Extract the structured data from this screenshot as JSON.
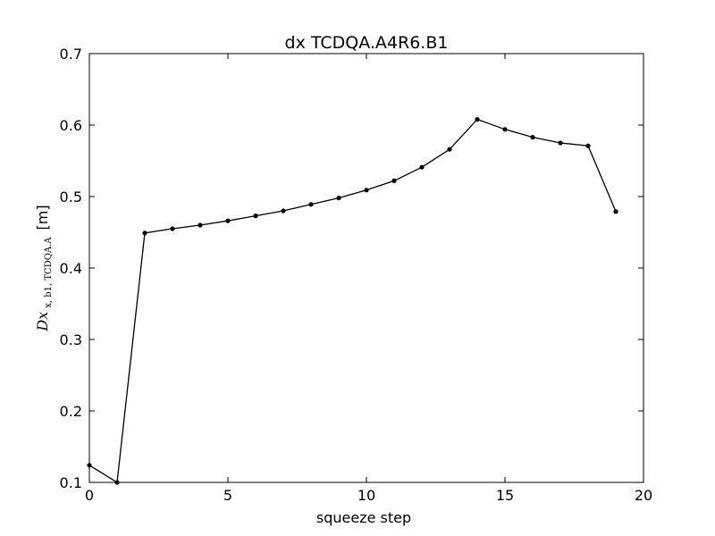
{
  "chart_data": {
    "type": "line",
    "title": "dx TCDQA.A4R6.B1",
    "xlabel": "squeeze step",
    "ylabel": {
      "main": "Dx",
      "subscript": "x, b1, TCDQA.A",
      "unit": "[m]"
    },
    "xlim": [
      0,
      20
    ],
    "ylim": [
      0.1,
      0.7
    ],
    "xticks": [
      0,
      5,
      10,
      15,
      20
    ],
    "xtick_labels": [
      "0",
      "5",
      "10",
      "15",
      "20"
    ],
    "yticks": [
      0.1,
      0.2,
      0.3,
      0.4,
      0.5,
      0.6,
      0.7
    ],
    "ytick_labels": [
      "0.1",
      "0.2",
      "0.3",
      "0.4",
      "0.5",
      "0.6",
      "0.7"
    ],
    "grid": false,
    "series": [
      {
        "name": "dx",
        "color": "#000000",
        "marker": "dot",
        "x": [
          0,
          1,
          2,
          3,
          4,
          5,
          6,
          7,
          8,
          9,
          10,
          11,
          12,
          13,
          14,
          15,
          16,
          17,
          18,
          19
        ],
        "y": [
          0.124,
          0.1,
          0.449,
          0.455,
          0.46,
          0.466,
          0.473,
          0.48,
          0.489,
          0.498,
          0.509,
          0.522,
          0.541,
          0.566,
          0.608,
          0.594,
          0.583,
          0.575,
          0.571,
          0.479
        ]
      }
    ]
  }
}
